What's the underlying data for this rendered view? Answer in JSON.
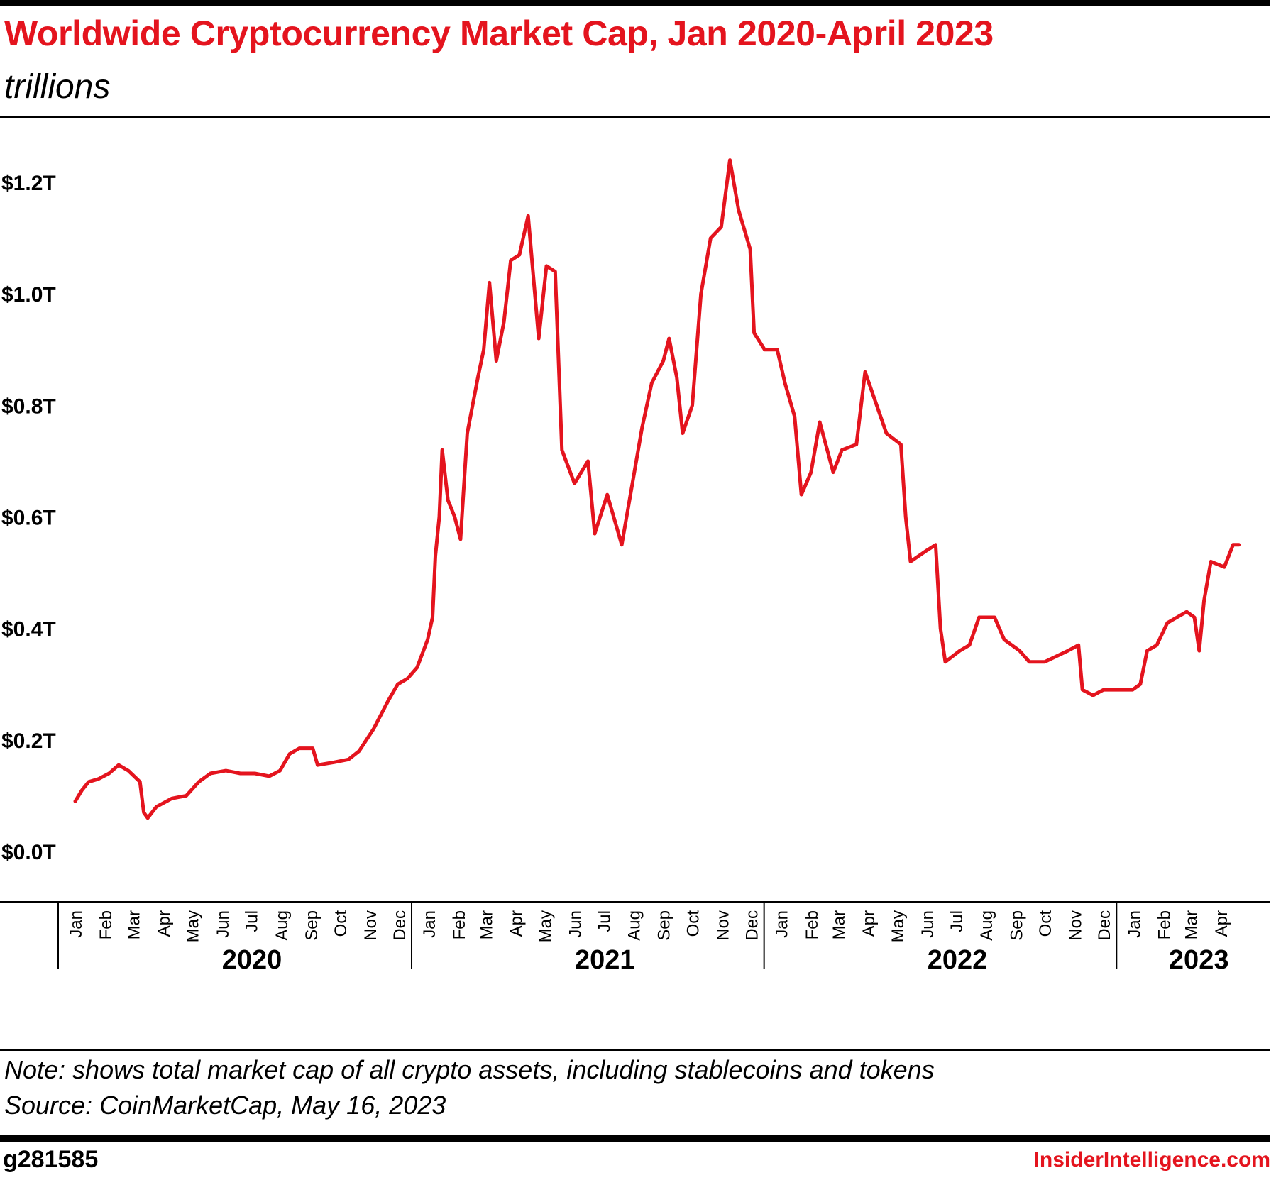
{
  "header": {
    "title": "Worldwide Cryptocurrency Market Cap, Jan 2020-April 2023",
    "subtitle": "trillions"
  },
  "chart_data": {
    "type": "line",
    "title": "Worldwide Cryptocurrency Market Cap, Jan 2020-April 2023",
    "unit": "trillions",
    "ylim": [
      0,
      1.25
    ],
    "y_ticks": [
      {
        "value": 0.0,
        "label": "$0.0T"
      },
      {
        "value": 0.2,
        "label": "$0.2T"
      },
      {
        "value": 0.4,
        "label": "$0.4T"
      },
      {
        "value": 0.6,
        "label": "$0.6T"
      },
      {
        "value": 0.8,
        "label": "$0.8T"
      },
      {
        "value": 1.0,
        "label": "$1.0T"
      },
      {
        "value": 1.2,
        "label": "$1.2T"
      }
    ],
    "grid": false,
    "line_color": "#e4141e",
    "x_range": [
      "2020-01-01",
      "2023-05-16"
    ],
    "x_axis": [
      {
        "year": "2020",
        "months": [
          "Jan",
          "Feb",
          "Mar",
          "Apr",
          "May",
          "Jun",
          "Jul",
          "Aug",
          "Sep",
          "Oct",
          "Nov",
          "Dec"
        ]
      },
      {
        "year": "2021",
        "months": [
          "Jan",
          "Feb",
          "Mar",
          "Apr",
          "May",
          "Jun",
          "Jul",
          "Aug",
          "Sep",
          "Oct",
          "Nov",
          "Dec"
        ]
      },
      {
        "year": "2022",
        "months": [
          "Jan",
          "Feb",
          "Mar",
          "Apr",
          "May",
          "Jun",
          "Jul",
          "Aug",
          "Sep",
          "Oct",
          "Nov",
          "Dec"
        ]
      },
      {
        "year": "2023",
        "months": [
          "Jan",
          "Feb",
          "Mar",
          "Apr"
        ]
      }
    ],
    "series": [
      {
        "values": [
          {
            "x": "2020-01-01",
            "y": 0.09
          },
          {
            "x": "2020-01-08",
            "y": 0.11
          },
          {
            "x": "2020-01-15",
            "y": 0.125
          },
          {
            "x": "2020-01-25",
            "y": 0.13
          },
          {
            "x": "2020-02-05",
            "y": 0.14
          },
          {
            "x": "2020-02-15",
            "y": 0.155
          },
          {
            "x": "2020-02-25",
            "y": 0.145
          },
          {
            "x": "2020-03-08",
            "y": 0.125
          },
          {
            "x": "2020-03-12",
            "y": 0.07
          },
          {
            "x": "2020-03-16",
            "y": 0.06
          },
          {
            "x": "2020-03-25",
            "y": 0.08
          },
          {
            "x": "2020-04-10",
            "y": 0.095
          },
          {
            "x": "2020-04-25",
            "y": 0.1
          },
          {
            "x": "2020-05-08",
            "y": 0.125
          },
          {
            "x": "2020-05-20",
            "y": 0.14
          },
          {
            "x": "2020-06-05",
            "y": 0.145
          },
          {
            "x": "2020-06-20",
            "y": 0.14
          },
          {
            "x": "2020-07-05",
            "y": 0.14
          },
          {
            "x": "2020-07-20",
            "y": 0.135
          },
          {
            "x": "2020-07-31",
            "y": 0.145
          },
          {
            "x": "2020-08-10",
            "y": 0.175
          },
          {
            "x": "2020-08-20",
            "y": 0.185
          },
          {
            "x": "2020-09-03",
            "y": 0.185
          },
          {
            "x": "2020-09-08",
            "y": 0.155
          },
          {
            "x": "2020-09-25",
            "y": 0.16
          },
          {
            "x": "2020-10-10",
            "y": 0.165
          },
          {
            "x": "2020-10-21",
            "y": 0.18
          },
          {
            "x": "2020-11-05",
            "y": 0.22
          },
          {
            "x": "2020-11-20",
            "y": 0.27
          },
          {
            "x": "2020-11-30",
            "y": 0.3
          },
          {
            "x": "2020-12-10",
            "y": 0.31
          },
          {
            "x": "2020-12-20",
            "y": 0.33
          },
          {
            "x": "2020-12-31",
            "y": 0.38
          },
          {
            "x": "2021-01-05",
            "y": 0.42
          },
          {
            "x": "2021-01-08",
            "y": 0.53
          },
          {
            "x": "2021-01-12",
            "y": 0.6
          },
          {
            "x": "2021-01-15",
            "y": 0.72
          },
          {
            "x": "2021-01-21",
            "y": 0.63
          },
          {
            "x": "2021-01-28",
            "y": 0.6
          },
          {
            "x": "2021-02-03",
            "y": 0.56
          },
          {
            "x": "2021-02-10",
            "y": 0.75
          },
          {
            "x": "2021-02-21",
            "y": 0.85
          },
          {
            "x": "2021-02-27",
            "y": 0.9
          },
          {
            "x": "2021-03-05",
            "y": 1.02
          },
          {
            "x": "2021-03-12",
            "y": 0.88
          },
          {
            "x": "2021-03-20",
            "y": 0.95
          },
          {
            "x": "2021-03-27",
            "y": 1.06
          },
          {
            "x": "2021-04-05",
            "y": 1.07
          },
          {
            "x": "2021-04-14",
            "y": 1.14
          },
          {
            "x": "2021-04-25",
            "y": 0.92
          },
          {
            "x": "2021-05-03",
            "y": 1.05
          },
          {
            "x": "2021-05-12",
            "y": 1.04
          },
          {
            "x": "2021-05-19",
            "y": 0.72
          },
          {
            "x": "2021-06-01",
            "y": 0.66
          },
          {
            "x": "2021-06-15",
            "y": 0.7
          },
          {
            "x": "2021-06-22",
            "y": 0.57
          },
          {
            "x": "2021-07-05",
            "y": 0.64
          },
          {
            "x": "2021-07-20",
            "y": 0.55
          },
          {
            "x": "2021-07-31",
            "y": 0.66
          },
          {
            "x": "2021-08-10",
            "y": 0.76
          },
          {
            "x": "2021-08-20",
            "y": 0.84
          },
          {
            "x": "2021-09-01",
            "y": 0.88
          },
          {
            "x": "2021-09-07",
            "y": 0.92
          },
          {
            "x": "2021-09-15",
            "y": 0.85
          },
          {
            "x": "2021-09-21",
            "y": 0.75
          },
          {
            "x": "2021-10-01",
            "y": 0.8
          },
          {
            "x": "2021-10-10",
            "y": 1.0
          },
          {
            "x": "2021-10-20",
            "y": 1.1
          },
          {
            "x": "2021-10-31",
            "y": 1.12
          },
          {
            "x": "2021-11-09",
            "y": 1.24
          },
          {
            "x": "2021-11-18",
            "y": 1.15
          },
          {
            "x": "2021-11-30",
            "y": 1.08
          },
          {
            "x": "2021-12-04",
            "y": 0.93
          },
          {
            "x": "2021-12-15",
            "y": 0.9
          },
          {
            "x": "2021-12-28",
            "y": 0.9
          },
          {
            "x": "2022-01-05",
            "y": 0.84
          },
          {
            "x": "2022-01-15",
            "y": 0.78
          },
          {
            "x": "2022-01-22",
            "y": 0.64
          },
          {
            "x": "2022-02-01",
            "y": 0.68
          },
          {
            "x": "2022-02-10",
            "y": 0.77
          },
          {
            "x": "2022-02-24",
            "y": 0.68
          },
          {
            "x": "2022-03-05",
            "y": 0.72
          },
          {
            "x": "2022-03-20",
            "y": 0.73
          },
          {
            "x": "2022-03-29",
            "y": 0.86
          },
          {
            "x": "2022-04-10",
            "y": 0.8
          },
          {
            "x": "2022-04-20",
            "y": 0.75
          },
          {
            "x": "2022-05-05",
            "y": 0.73
          },
          {
            "x": "2022-05-10",
            "y": 0.6
          },
          {
            "x": "2022-05-15",
            "y": 0.52
          },
          {
            "x": "2022-06-01",
            "y": 0.54
          },
          {
            "x": "2022-06-10",
            "y": 0.55
          },
          {
            "x": "2022-06-15",
            "y": 0.4
          },
          {
            "x": "2022-06-20",
            "y": 0.34
          },
          {
            "x": "2022-07-05",
            "y": 0.36
          },
          {
            "x": "2022-07-15",
            "y": 0.37
          },
          {
            "x": "2022-07-25",
            "y": 0.42
          },
          {
            "x": "2022-08-10",
            "y": 0.42
          },
          {
            "x": "2022-08-20",
            "y": 0.38
          },
          {
            "x": "2022-09-05",
            "y": 0.36
          },
          {
            "x": "2022-09-15",
            "y": 0.34
          },
          {
            "x": "2022-10-01",
            "y": 0.34
          },
          {
            "x": "2022-10-25",
            "y": 0.36
          },
          {
            "x": "2022-11-05",
            "y": 0.37
          },
          {
            "x": "2022-11-09",
            "y": 0.29
          },
          {
            "x": "2022-11-20",
            "y": 0.28
          },
          {
            "x": "2022-12-01",
            "y": 0.29
          },
          {
            "x": "2022-12-15",
            "y": 0.29
          },
          {
            "x": "2022-12-31",
            "y": 0.29
          },
          {
            "x": "2023-01-08",
            "y": 0.3
          },
          {
            "x": "2023-01-15",
            "y": 0.36
          },
          {
            "x": "2023-01-25",
            "y": 0.37
          },
          {
            "x": "2023-02-05",
            "y": 0.41
          },
          {
            "x": "2023-02-15",
            "y": 0.42
          },
          {
            "x": "2023-02-25",
            "y": 0.43
          },
          {
            "x": "2023-03-05",
            "y": 0.42
          },
          {
            "x": "2023-03-10",
            "y": 0.36
          },
          {
            "x": "2023-03-15",
            "y": 0.45
          },
          {
            "x": "2023-03-22",
            "y": 0.52
          },
          {
            "x": "2023-04-05",
            "y": 0.51
          },
          {
            "x": "2023-04-14",
            "y": 0.55
          },
          {
            "x": "2023-04-20",
            "y": 0.55
          }
        ]
      }
    ]
  },
  "footer": {
    "note": "Note:  shows total market cap of all crypto assets, including stablecoins and tokens",
    "source": "Source: CoinMarketCap, May 16, 2023",
    "chart_id": "g281585",
    "brand": "InsiderIntelligence.com"
  }
}
